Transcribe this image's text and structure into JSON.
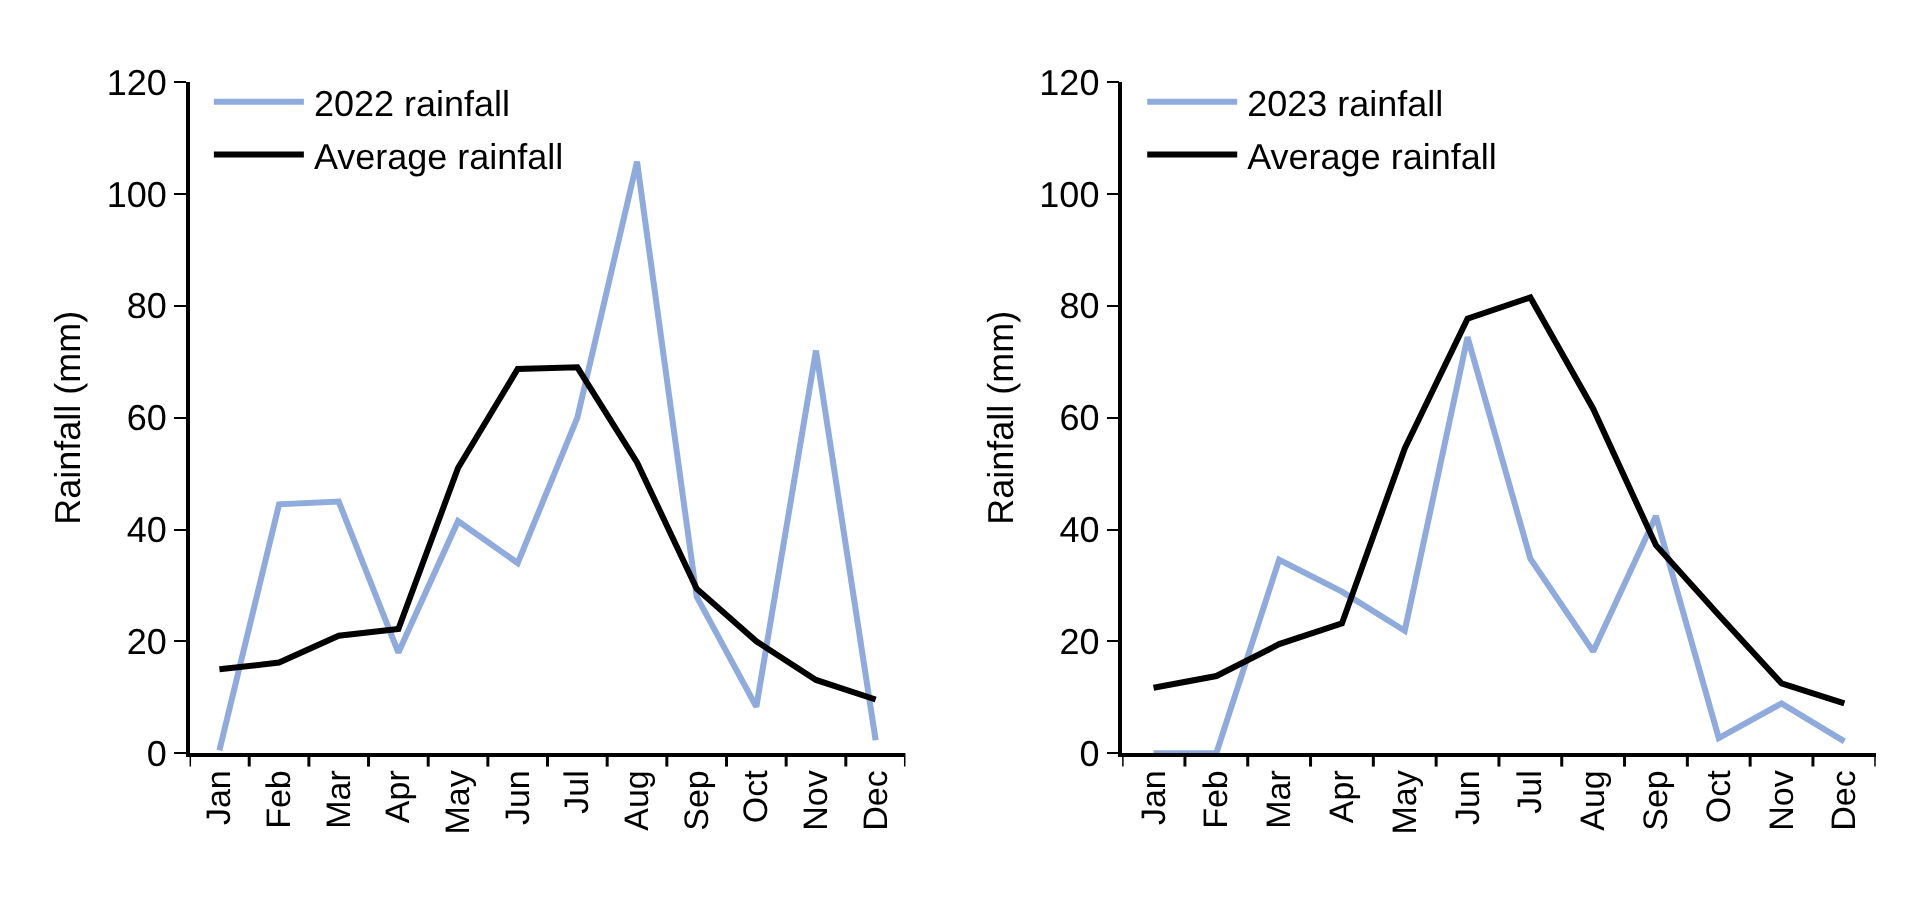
{
  "chart_data": [
    {
      "type": "line",
      "ylabel": "Rainfall (mm)",
      "categories": [
        "Jan",
        "Feb",
        "Mar",
        "Apr",
        "May",
        "Jun",
        "Jul",
        "Aug",
        "Sep",
        "Oct",
        "Nov",
        "Dec"
      ],
      "ylim": [
        0,
        120
      ],
      "yticks": [
        0,
        20,
        40,
        60,
        80,
        100,
        120
      ],
      "legend": "top left",
      "series": [
        {
          "name": "2022 rainfall",
          "color": "#8faadc",
          "values": [
            0.5,
            44.5,
            45,
            18,
            41.5,
            34,
            60,
            105.8,
            28,
            8.3,
            72,
            2.3
          ]
        },
        {
          "name": "Average rainfall",
          "color": "#000000",
          "values": [
            15,
            16.2,
            21,
            22.2,
            51,
            68.7,
            69,
            52,
            29.4,
            20,
            13.1,
            9.6
          ]
        }
      ]
    },
    {
      "type": "line",
      "ylabel": "Rainfall (mm)",
      "categories": [
        "Jan",
        "Feb",
        "Mar",
        "Apr",
        "May",
        "Jun",
        "Jul",
        "Aug",
        "Sep",
        "Oct",
        "Nov",
        "Dec"
      ],
      "ylim": [
        0,
        120
      ],
      "yticks": [
        0,
        20,
        40,
        60,
        80,
        100,
        120
      ],
      "legend": "top left",
      "series": [
        {
          "name": "2023 rainfall",
          "color": "#8faadc",
          "values": [
            0,
            0,
            34.6,
            28.9,
            21.9,
            74.4,
            34.8,
            18.2,
            42.4,
            2.7,
            8.9,
            2.1
          ]
        },
        {
          "name": "Average rainfall",
          "color": "#000000",
          "values": [
            11.7,
            13.8,
            19.5,
            23.2,
            54.5,
            77.7,
            81.5,
            61.6,
            37.2,
            24.7,
            12.5,
            8.9
          ]
        }
      ]
    }
  ]
}
